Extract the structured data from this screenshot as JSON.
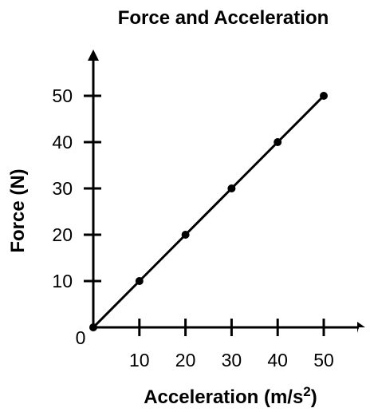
{
  "chart_data": {
    "type": "line",
    "title": "Force and Acceleration",
    "xlabel": "Acceleration (m/s",
    "xlabel_superscript": "2",
    "xlabel_suffix": ")",
    "ylabel": "Force (N)",
    "origin_label": "0",
    "x": [
      0,
      10,
      20,
      30,
      40,
      50
    ],
    "series": [
      {
        "values": [
          0,
          10,
          20,
          30,
          40,
          50
        ]
      }
    ],
    "xlim": [
      0,
      55
    ],
    "ylim": [
      0,
      60
    ],
    "xticks": [
      10,
      20,
      30,
      40,
      50
    ],
    "yticks": [
      10,
      20,
      30,
      40,
      50
    ],
    "xtick_labels": [
      "10",
      "20",
      "30",
      "40",
      "50"
    ],
    "ytick_labels": [
      "10",
      "20",
      "30",
      "40",
      "50"
    ],
    "grid": false,
    "legend": "none",
    "line_color": "#000000",
    "point_color": "#000000"
  }
}
